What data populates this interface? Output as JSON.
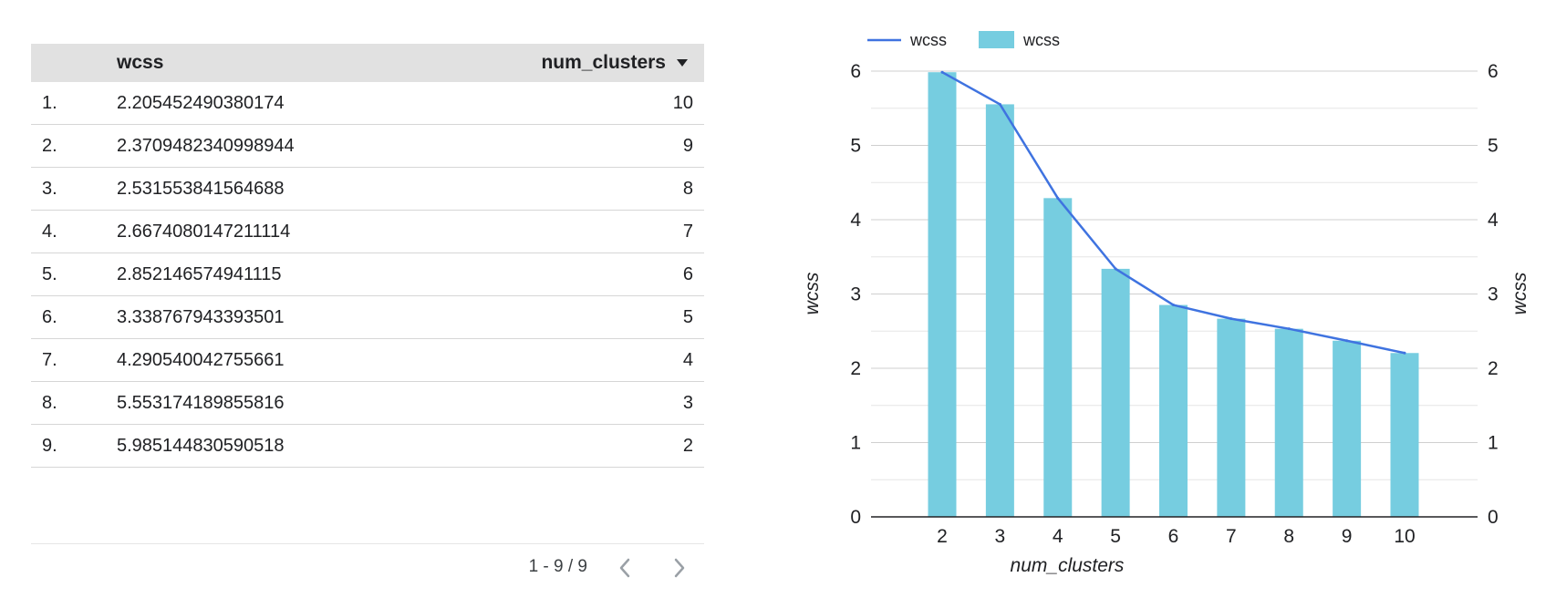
{
  "table": {
    "headers": {
      "wcss": "wcss",
      "num_clusters": "num_clusters"
    },
    "rows": [
      {
        "idx": "1.",
        "wcss": "2.205452490380174",
        "num_clusters": "10"
      },
      {
        "idx": "2.",
        "wcss": "2.3709482340998944",
        "num_clusters": "9"
      },
      {
        "idx": "3.",
        "wcss": "2.531553841564688",
        "num_clusters": "8"
      },
      {
        "idx": "4.",
        "wcss": "2.6674080147211114",
        "num_clusters": "7"
      },
      {
        "idx": "5.",
        "wcss": "2.852146574941115",
        "num_clusters": "6"
      },
      {
        "idx": "6.",
        "wcss": "3.338767943393501",
        "num_clusters": "5"
      },
      {
        "idx": "7.",
        "wcss": "4.290540042755661",
        "num_clusters": "4"
      },
      {
        "idx": "8.",
        "wcss": "5.553174189855816",
        "num_clusters": "3"
      },
      {
        "idx": "9.",
        "wcss": "5.985144830590518",
        "num_clusters": "2"
      }
    ],
    "pagination": "1 - 9 / 9",
    "icons": {
      "sort": "sort-descending-icon",
      "prev": "chevron-left-icon",
      "next": "chevron-right-icon"
    }
  },
  "chart_data": {
    "type": "bar",
    "categories": [
      "2",
      "3",
      "4",
      "5",
      "6",
      "7",
      "8",
      "9",
      "10"
    ],
    "series": [
      {
        "name": "wcss",
        "kind": "line",
        "color": "#3f73e0",
        "values": [
          5.985144830590518,
          5.553174189855816,
          4.290540042755661,
          3.338767943393501,
          2.852146574941115,
          2.6674080147211114,
          2.531553841564688,
          2.3709482340998944,
          2.205452490380174
        ]
      },
      {
        "name": "wcss",
        "kind": "bar",
        "color": "#76cde0",
        "values": [
          5.985144830590518,
          5.553174189855816,
          4.290540042755661,
          3.338767943393501,
          2.852146574941115,
          2.6674080147211114,
          2.531553841564688,
          2.3709482340998944,
          2.205452490380174
        ]
      }
    ],
    "xlabel": "num_clusters",
    "ylabel": "wcss",
    "y2label": "wcss",
    "ylim": [
      0,
      6
    ],
    "yticks": [
      "0",
      "1",
      "2",
      "3",
      "4",
      "5",
      "6"
    ],
    "grid": true,
    "legend": "top-left"
  }
}
